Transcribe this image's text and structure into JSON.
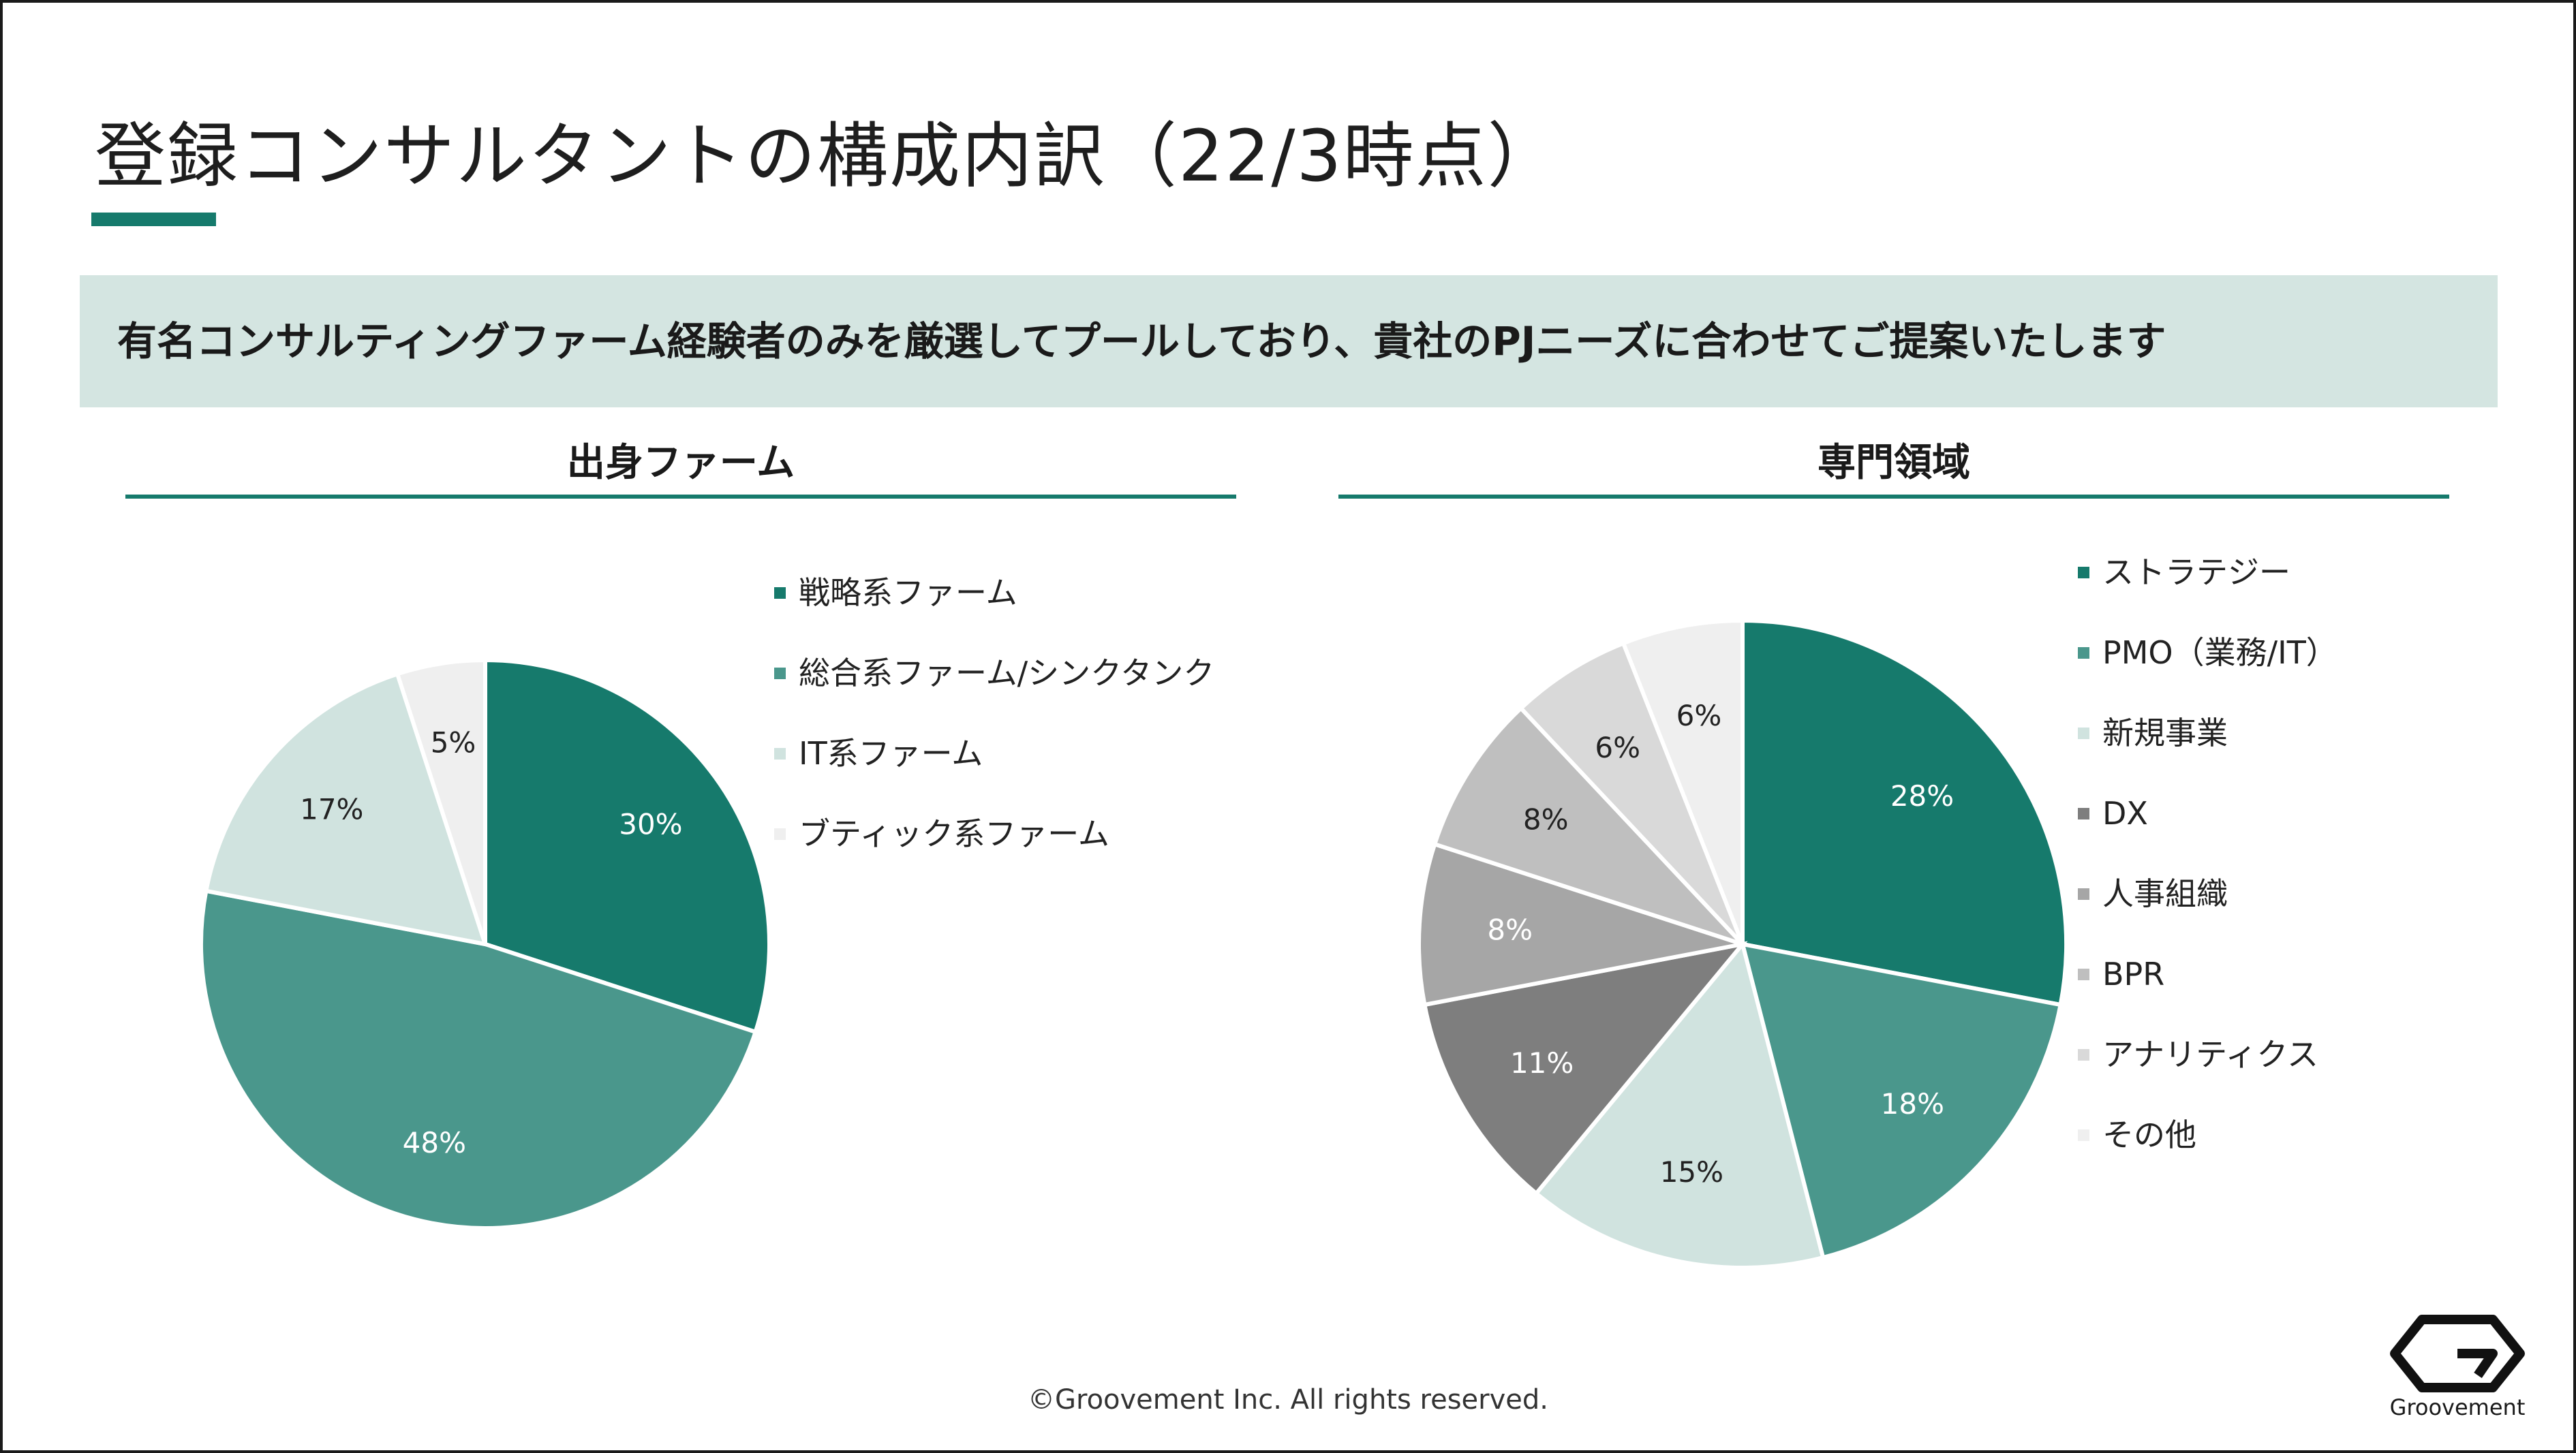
{
  "title": "登録コンサルタントの構成内訳（22/3時点）",
  "banner": "有名コンサルティングファーム経験者のみを厳選してプールしており、貴社のPJニーズに合わせてご提案いたします",
  "footer": {
    "copyright": "©Groovement Inc. All rights reserved.",
    "logo_text": "Groovement"
  },
  "chart_data": [
    {
      "type": "pie",
      "title": "出身ファーム",
      "categories": [
        "戦略系ファーム",
        "総合系ファーム/シンクタンク",
        "IT系ファーム",
        "ブティック系ファーム"
      ],
      "values": [
        30,
        48,
        17,
        5
      ],
      "labels": [
        "30%",
        "48%",
        "17%",
        "5%"
      ],
      "colors": [
        "#167a6c",
        "#4a978c",
        "#d0e3df",
        "#efefef"
      ],
      "label_colors": [
        "#ffffff",
        "#ffffff",
        "#222222",
        "#222222"
      ],
      "legend": "right"
    },
    {
      "type": "pie",
      "title": "専門領域",
      "categories": [
        "ストラテジー",
        "PMO（業務/IT）",
        "新規事業",
        "DX",
        "人事組織",
        "BPR",
        "アナリティクス",
        "その他"
      ],
      "values": [
        28,
        18,
        15,
        11,
        8,
        8,
        6,
        6
      ],
      "labels": [
        "28%",
        "18%",
        "15%",
        "11%",
        "8%",
        "8%",
        "6%",
        "6%"
      ],
      "colors": [
        "#167a6c",
        "#4a978c",
        "#d0e3df",
        "#7e7e7e",
        "#a6a6a6",
        "#bfbfbf",
        "#d9d9d9",
        "#efefef"
      ],
      "label_colors": [
        "#ffffff",
        "#ffffff",
        "#222222",
        "#ffffff",
        "#ffffff",
        "#222222",
        "#222222",
        "#222222"
      ],
      "legend": "right"
    }
  ]
}
